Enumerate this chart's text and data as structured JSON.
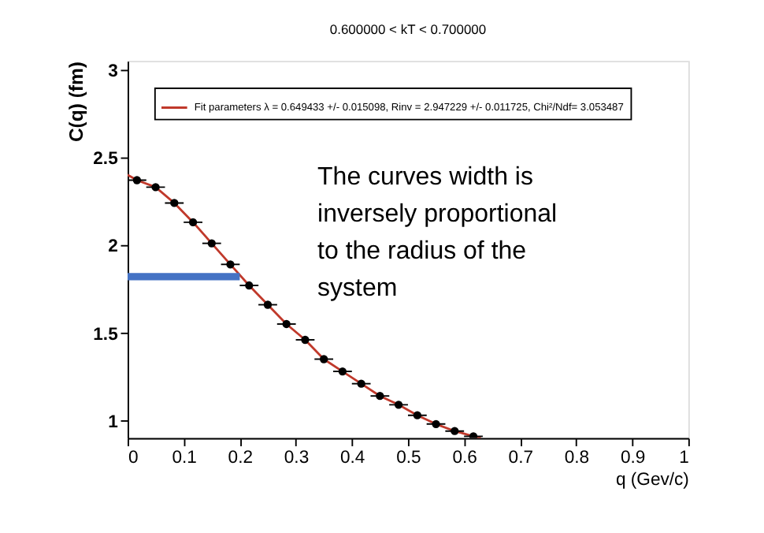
{
  "chart_data": {
    "type": "scatter",
    "title": "0.600000 < kT < 0.700000",
    "xlabel": "q (Gev/c)",
    "ylabel": "C(q) (fm)",
    "xlim": [
      0,
      1
    ],
    "xticks": [
      0,
      0.1,
      0.2,
      0.3,
      0.4,
      0.5,
      0.6,
      0.7,
      0.8,
      0.9,
      1
    ],
    "ylim": [
      0.9,
      3.05
    ],
    "yticks": [
      1,
      1.5,
      2,
      2.5,
      3
    ],
    "grid": false,
    "legend": "top left",
    "annotations": [
      "The curves width is inversely proportional to the radius of the system"
    ],
    "series": [
      {
        "color": "#000000",
        "marker": "circle",
        "x": [
          0.0167,
          0.05,
          0.0833,
          0.1167,
          0.15,
          0.1833,
          0.2167,
          0.25,
          0.2833,
          0.3167,
          0.35,
          0.3833,
          0.4167,
          0.45,
          0.4833,
          0.5167,
          0.55,
          0.5833,
          0.6167
        ],
        "values": [
          2.37,
          2.33,
          2.24,
          2.13,
          2.01,
          1.89,
          1.77,
          1.66,
          1.55,
          1.46,
          1.35,
          1.28,
          1.21,
          1.14,
          1.09,
          1.03,
          0.98,
          0.94,
          0.91
        ],
        "xerrors": [
          0.0167,
          0.0167,
          0.0167,
          0.0167,
          0.0167,
          0.0167,
          0.0167,
          0.0167,
          0.0167,
          0.0167,
          0.0167,
          0.0167,
          0.0167,
          0.0167,
          0.0167,
          0.0167,
          0.0167,
          0.0167,
          0.0167
        ]
      },
      {
        "type": "line",
        "name": "Fit parameters λ = 0.649433 +/- 0.015098, Rinv = 2.947229 +/- 0.011725, Chi²/Ndf= 3.053487",
        "color": "#c0392b",
        "line_style": "solid",
        "x": [
          0,
          0.0167,
          0.05,
          0.0833,
          0.1167,
          0.15,
          0.1833,
          0.2167,
          0.25,
          0.2833,
          0.3167,
          0.35,
          0.3833,
          0.4167,
          0.45,
          0.4833,
          0.5167,
          0.55,
          0.5833,
          0.6167,
          0.63
        ],
        "values": [
          2.4,
          2.37,
          2.33,
          2.24,
          2.13,
          2.01,
          1.89,
          1.77,
          1.66,
          1.55,
          1.46,
          1.35,
          1.28,
          1.21,
          1.14,
          1.09,
          1.03,
          0.98,
          0.94,
          0.91,
          0.9
        ]
      },
      {
        "type": "line",
        "color": "#4472c4",
        "line_style": "solid",
        "x": [
          0,
          0.2
        ],
        "values": [
          1.82,
          1.82
        ]
      }
    ]
  }
}
